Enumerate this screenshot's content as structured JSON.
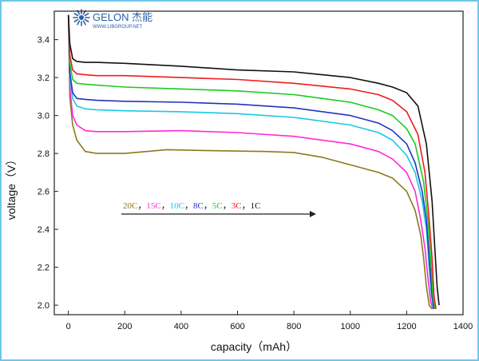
{
  "brand": {
    "name": "GELON 杰能",
    "url": "WWW.LIBGROUP.NET"
  },
  "chart_data": {
    "type": "line",
    "title": "",
    "xlabel": "capacity（mAh）",
    "ylabel": "voltage（V）",
    "xlim": [
      -50,
      1400
    ],
    "ylim": [
      1.95,
      3.55
    ],
    "xticks": [
      0,
      200,
      400,
      600,
      800,
      1000,
      1200,
      1400
    ],
    "yticks": [
      2.0,
      2.2,
      2.4,
      2.6,
      2.8,
      3.0,
      3.2,
      3.4
    ],
    "legend": {
      "placement": "center-left",
      "items": [
        {
          "label": "20C",
          "color": "#8a7a1e"
        },
        {
          "label": "15C",
          "color": "#ff2ad6"
        },
        {
          "label": "10C",
          "color": "#18c8e8"
        },
        {
          "label": "8C",
          "color": "#2233bb"
        },
        {
          "label": "5C",
          "color": "#18cc22"
        },
        {
          "label": "3C",
          "color": "#ee1c1c"
        },
        {
          "label": "1C",
          "color": "#111111"
        }
      ],
      "separator": "，"
    },
    "series": [
      {
        "name": "20C",
        "color": "#8a7a1e",
        "x": [
          0,
          5,
          15,
          30,
          60,
          100,
          200,
          350,
          500,
          700,
          800,
          900,
          1000,
          1100,
          1150,
          1200,
          1230,
          1250,
          1260,
          1270,
          1280,
          1290
        ],
        "y": [
          3.53,
          3.1,
          2.95,
          2.87,
          2.81,
          2.8,
          2.8,
          2.82,
          2.815,
          2.81,
          2.805,
          2.78,
          2.74,
          2.7,
          2.67,
          2.6,
          2.5,
          2.37,
          2.25,
          2.1,
          2.0,
          1.98
        ]
      },
      {
        "name": "15C",
        "color": "#ff2ad6",
        "x": [
          0,
          5,
          15,
          30,
          60,
          100,
          200,
          400,
          600,
          800,
          1000,
          1100,
          1150,
          1200,
          1230,
          1250,
          1265,
          1275,
          1285,
          1293
        ],
        "y": [
          3.53,
          3.15,
          3.0,
          2.95,
          2.92,
          2.915,
          2.915,
          2.92,
          2.91,
          2.89,
          2.85,
          2.81,
          2.77,
          2.7,
          2.6,
          2.45,
          2.3,
          2.15,
          2.02,
          1.98
        ]
      },
      {
        "name": "10C",
        "color": "#18c8e8",
        "x": [
          0,
          5,
          15,
          30,
          60,
          100,
          200,
          400,
          600,
          800,
          1000,
          1100,
          1150,
          1200,
          1230,
          1255,
          1270,
          1280,
          1288,
          1295
        ],
        "y": [
          3.53,
          3.2,
          3.09,
          3.05,
          3.035,
          3.03,
          3.025,
          3.02,
          3.01,
          2.99,
          2.95,
          2.91,
          2.87,
          2.79,
          2.7,
          2.55,
          2.4,
          2.2,
          2.05,
          1.98
        ]
      },
      {
        "name": "8C",
        "color": "#2233bb",
        "x": [
          0,
          5,
          15,
          30,
          60,
          100,
          200,
          400,
          600,
          800,
          1000,
          1100,
          1150,
          1200,
          1230,
          1255,
          1270,
          1280,
          1290,
          1297
        ],
        "y": [
          3.53,
          3.23,
          3.12,
          3.09,
          3.085,
          3.08,
          3.075,
          3.07,
          3.06,
          3.04,
          3.0,
          2.96,
          2.92,
          2.85,
          2.75,
          2.6,
          2.45,
          2.25,
          2.05,
          1.98
        ]
      },
      {
        "name": "5C",
        "color": "#18cc22",
        "x": [
          0,
          5,
          15,
          30,
          60,
          100,
          200,
          400,
          600,
          800,
          1000,
          1100,
          1150,
          1200,
          1230,
          1260,
          1275,
          1285,
          1293,
          1300
        ],
        "y": [
          3.53,
          3.28,
          3.19,
          3.17,
          3.165,
          3.16,
          3.15,
          3.14,
          3.13,
          3.11,
          3.07,
          3.03,
          3.0,
          2.93,
          2.85,
          2.65,
          2.45,
          2.25,
          2.05,
          1.98
        ]
      },
      {
        "name": "3C",
        "color": "#ee1c1c",
        "x": [
          0,
          5,
          15,
          30,
          60,
          100,
          200,
          400,
          600,
          800,
          1000,
          1100,
          1150,
          1200,
          1240,
          1265,
          1280,
          1290,
          1297,
          1304
        ],
        "y": [
          3.53,
          3.32,
          3.24,
          3.22,
          3.215,
          3.21,
          3.21,
          3.2,
          3.19,
          3.17,
          3.14,
          3.11,
          3.08,
          3.02,
          2.9,
          2.7,
          2.45,
          2.25,
          2.05,
          1.98
        ]
      },
      {
        "name": "1C",
        "color": "#111111",
        "x": [
          0,
          5,
          15,
          30,
          60,
          100,
          200,
          400,
          600,
          800,
          1000,
          1100,
          1150,
          1200,
          1240,
          1270,
          1290,
          1300,
          1308,
          1315
        ],
        "y": [
          3.53,
          3.38,
          3.3,
          3.285,
          3.28,
          3.28,
          3.275,
          3.26,
          3.24,
          3.23,
          3.2,
          3.17,
          3.15,
          3.12,
          3.05,
          2.85,
          2.55,
          2.3,
          2.1,
          2.0
        ]
      }
    ]
  }
}
